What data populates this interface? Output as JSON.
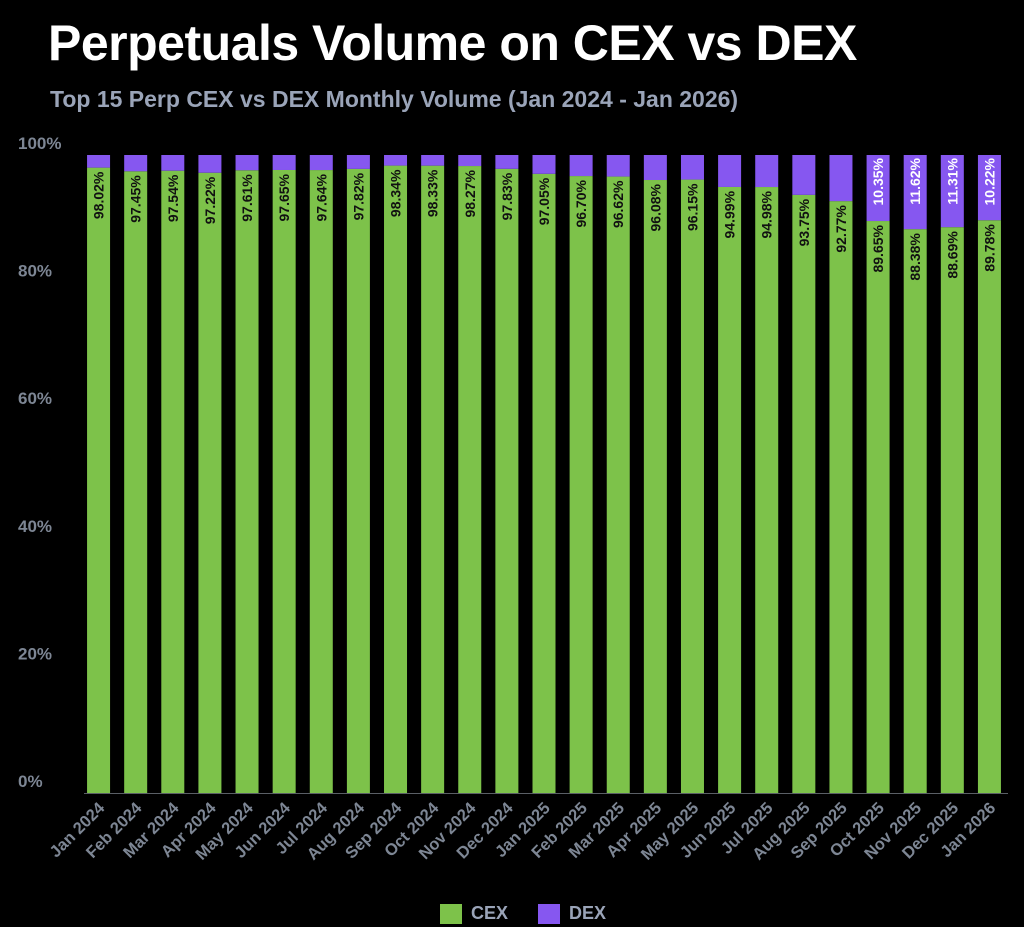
{
  "chart_data": {
    "type": "bar",
    "stacked": true,
    "title": "Perpetuals Volume on CEX vs DEX",
    "subtitle": "Top 15 Perp CEX vs DEX Monthly Volume (Jan 2024 - Jan 2026)",
    "xlabel": "",
    "ylabel": "",
    "ylim": [
      0,
      100
    ],
    "y_ticks": [
      "0%",
      "20%",
      "40%",
      "60%",
      "80%",
      "100%"
    ],
    "categories": [
      "Jan 2024",
      "Feb 2024",
      "Mar 2024",
      "Apr 2024",
      "May 2024",
      "Jun 2024",
      "Jul 2024",
      "Aug 2024",
      "Sep 2024",
      "Oct 2024",
      "Nov 2024",
      "Dec 2024",
      "Jan 2025",
      "Feb 2025",
      "Mar 2025",
      "Apr 2025",
      "May 2025",
      "Jun 2025",
      "Jul 2025",
      "Aug 2025",
      "Sep 2025",
      "Oct 2025",
      "Nov 2025",
      "Dec 2025",
      "Jan 2026"
    ],
    "series": [
      {
        "name": "CEX",
        "color": "#7dc24a",
        "values": [
          98.02,
          97.45,
          97.54,
          97.22,
          97.61,
          97.65,
          97.64,
          97.82,
          98.34,
          98.33,
          98.27,
          97.83,
          97.05,
          96.7,
          96.62,
          96.08,
          96.15,
          94.99,
          94.98,
          93.75,
          92.77,
          89.65,
          88.38,
          88.69,
          89.78
        ],
        "labels": [
          "98.02%",
          "97.45%",
          "97.54%",
          "97.22%",
          "97.61%",
          "97.65%",
          "97.64%",
          "97.82%",
          "98.34%",
          "98.33%",
          "98.27%",
          "97.83%",
          "97.05%",
          "96.70%",
          "96.62%",
          "96.08%",
          "96.15%",
          "94.99%",
          "94.98%",
          "93.75%",
          "92.77%",
          "89.65%",
          "88.38%",
          "88.69%",
          "89.78%"
        ]
      },
      {
        "name": "DEX",
        "color": "#8657f0",
        "values": [
          1.98,
          2.55,
          2.46,
          2.78,
          2.39,
          2.35,
          2.36,
          2.18,
          1.66,
          1.67,
          1.73,
          2.17,
          2.95,
          3.3,
          3.38,
          3.92,
          3.85,
          5.01,
          5.02,
          6.25,
          7.23,
          10.35,
          11.62,
          11.31,
          10.22
        ],
        "labels": [
          "",
          "",
          "",
          "",
          "",
          "",
          "",
          "",
          "",
          "",
          "",
          "",
          "",
          "",
          "",
          "",
          "",
          "",
          "",
          "",
          "",
          "10.35%",
          "11.62%",
          "11.31%",
          "10.22%"
        ]
      }
    ],
    "legend": {
      "position": "bottom-center",
      "entries": [
        "CEX",
        "DEX"
      ]
    }
  }
}
